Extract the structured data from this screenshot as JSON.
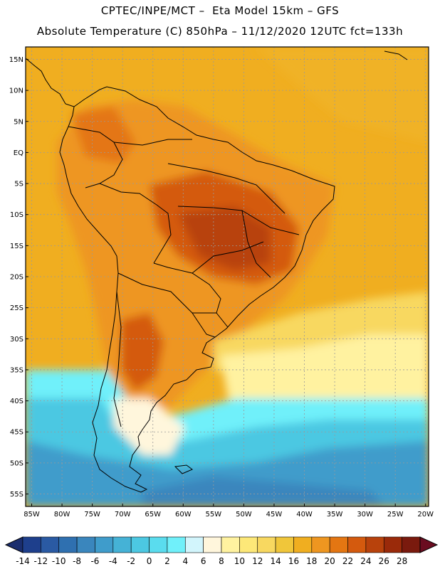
{
  "header": {
    "line1": "CPTEC/INPE/MCT –  Eta Model 15km – GFS",
    "line2": "Absolute Temperature (C) 850hPa – 11/12/2020 12UTC fct=133h"
  },
  "map": {
    "lon_range": [
      -86,
      -19.5
    ],
    "lat_range": [
      -57,
      17
    ],
    "lat_labels": [
      "15N",
      "10N",
      "5N",
      "EQ",
      "5S",
      "10S",
      "15S",
      "20S",
      "25S",
      "30S",
      "35S",
      "40S",
      "45S",
      "50S",
      "55S"
    ],
    "lat_values": [
      15,
      10,
      5,
      0,
      -5,
      -10,
      -15,
      -20,
      -25,
      -30,
      -35,
      -40,
      -45,
      -50,
      -55
    ],
    "lon_labels": [
      "85W",
      "80W",
      "75W",
      "70W",
      "65W",
      "60W",
      "55W",
      "50W",
      "45W",
      "40W",
      "35W",
      "30W",
      "25W",
      "20W"
    ],
    "lon_values": [
      -85,
      -80,
      -75,
      -70,
      -65,
      -60,
      -55,
      -50,
      -45,
      -40,
      -35,
      -30,
      -25,
      -20
    ]
  },
  "colorbar": {
    "labels": [
      "-14",
      "-12",
      "-10",
      "-8",
      "-6",
      "-4",
      "-2",
      "0",
      "2",
      "4",
      "6",
      "8",
      "10",
      "12",
      "14",
      "16",
      "18",
      "20",
      "22",
      "24",
      "26",
      "28"
    ],
    "colors": [
      "#1e3f8c",
      "#2a5aa3",
      "#2f70b0",
      "#3a86bd",
      "#3f9ccb",
      "#45b2d6",
      "#4cc8e2",
      "#5adcee",
      "#70f0fa",
      "#d2f5fc",
      "#fff6dc",
      "#fff2a0",
      "#fde878",
      "#f8d860",
      "#f0c63a",
      "#f0ae20",
      "#ee9620",
      "#e47612",
      "#d45a0e",
      "#b8420c",
      "#9a2a0a",
      "#7a1a0e"
    ],
    "left_cap": "#1a2d6e",
    "right_cap": "#6a0c20"
  }
}
